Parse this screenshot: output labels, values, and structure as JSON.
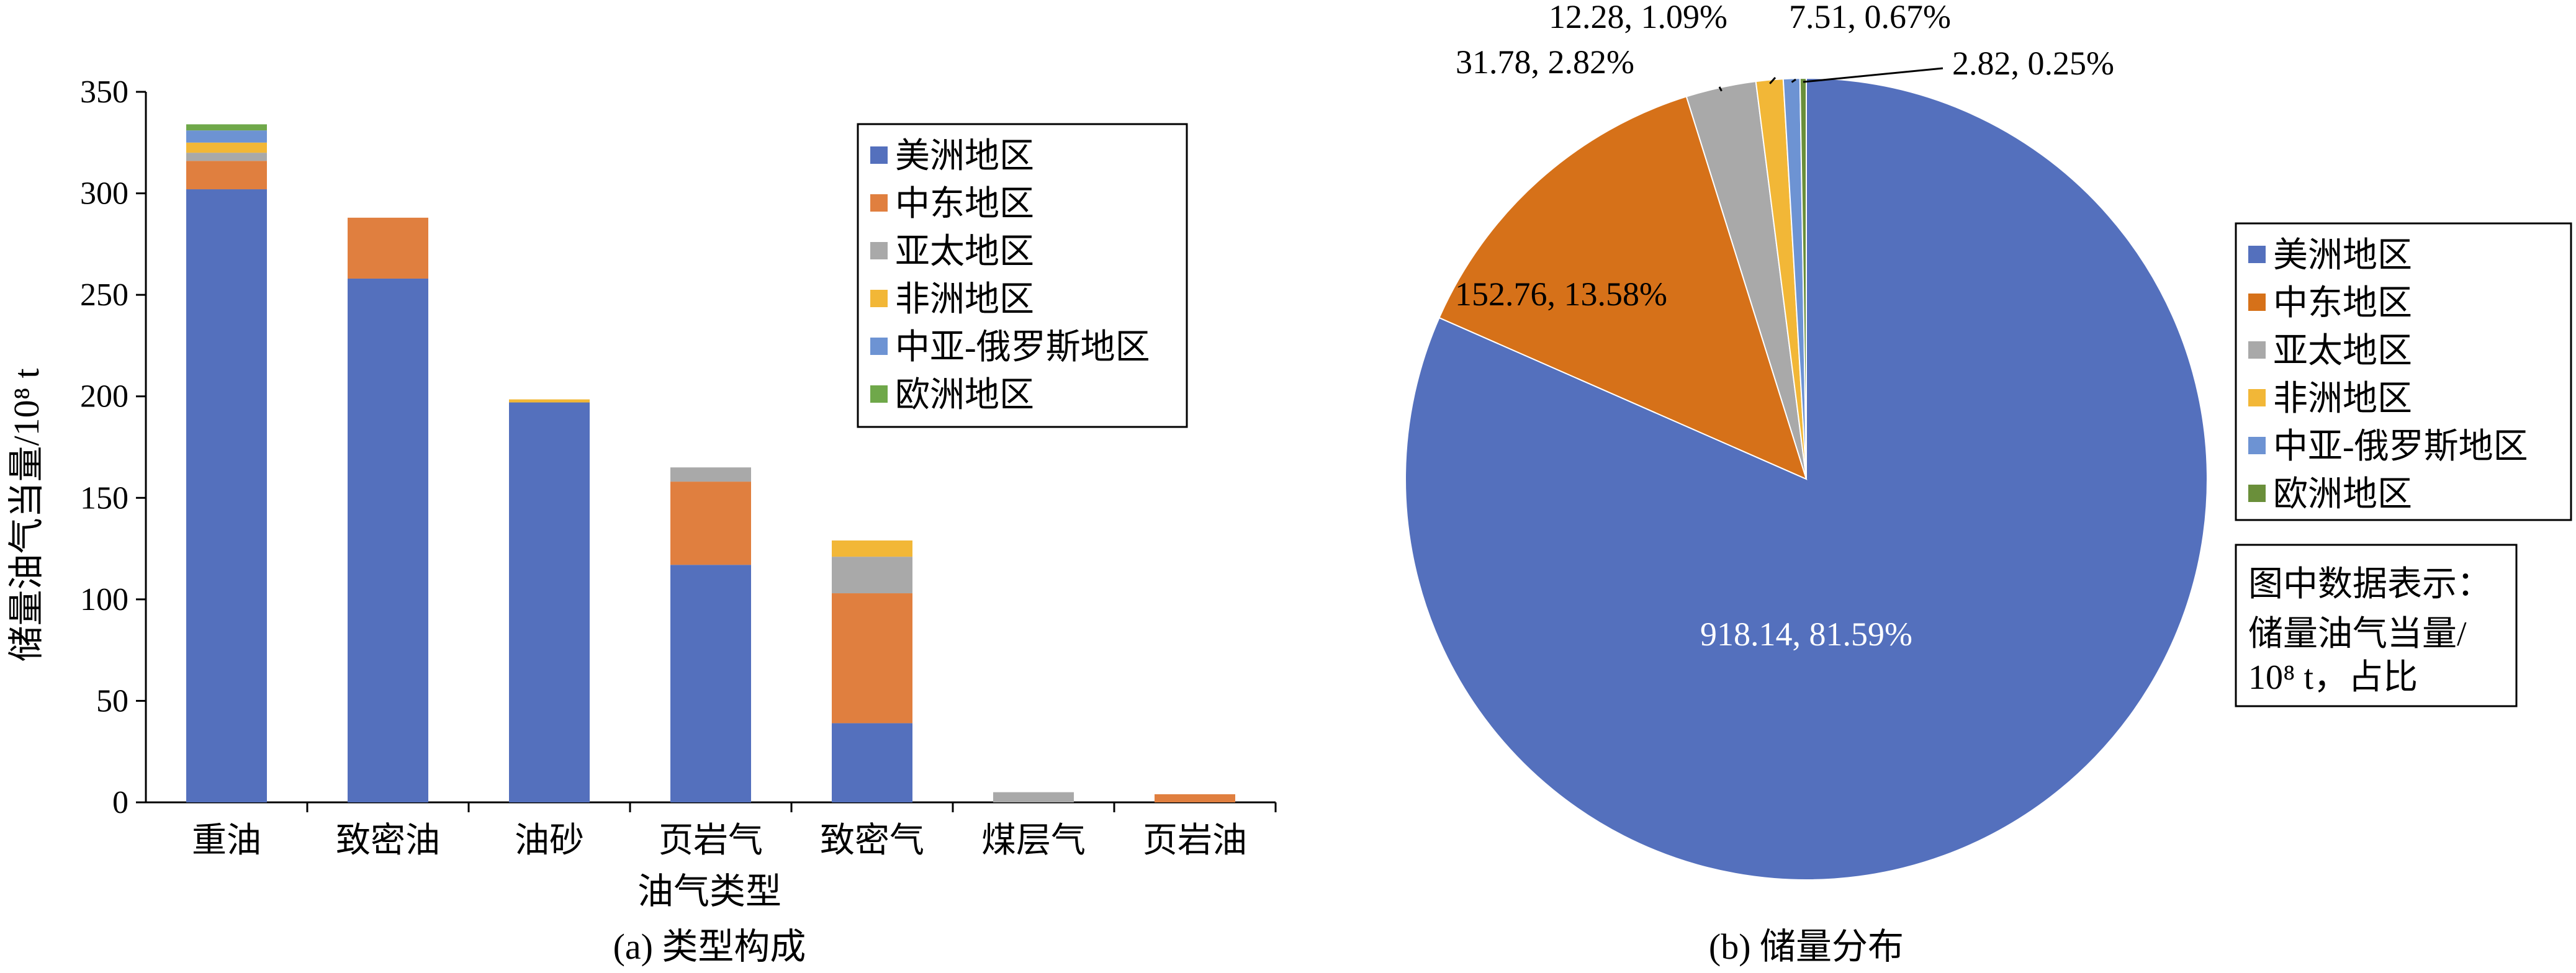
{
  "colors": {
    "美洲地区": "#5470bd",
    "中东地区": "#e07f3f",
    "亚太地区": "#a9a9a9",
    "非洲地区": "#f2b737",
    "中亚-俄罗斯地区": "#6d93d3",
    "欧洲地区": "#6fa84a",
    "pie_中东地区": "#d67119",
    "pie_欧洲地区": "#6a8f3a"
  },
  "chart_data": [
    {
      "type": "bar",
      "stacked": true,
      "caption": "(a) 类型构成",
      "xlabel": "油气类型",
      "ylabel": "储量油气当量/10⁸ t",
      "ylim": [
        0,
        350
      ],
      "yticks": [
        0,
        50,
        100,
        150,
        200,
        250,
        300,
        350
      ],
      "categories": [
        "重油",
        "致密油",
        "油砂",
        "页岩气",
        "致密气",
        "煤层气",
        "页岩油"
      ],
      "series": [
        {
          "name": "美洲地区",
          "values": [
            302,
            258,
            197,
            117,
            39,
            0,
            0
          ]
        },
        {
          "name": "中东地区",
          "values": [
            14,
            30,
            0,
            41,
            64,
            0,
            4
          ]
        },
        {
          "name": "亚太地区",
          "values": [
            4,
            0,
            0,
            7,
            18,
            5,
            0
          ]
        },
        {
          "name": "非洲地区",
          "values": [
            5,
            0,
            1.5,
            0,
            8,
            0,
            0
          ]
        },
        {
          "name": "中亚-俄罗斯地区",
          "values": [
            6,
            0,
            0,
            0,
            0,
            0,
            0
          ]
        },
        {
          "name": "欧洲地区",
          "values": [
            3,
            0,
            0,
            0,
            0,
            0,
            0
          ]
        }
      ],
      "legend": {
        "position": "top-right",
        "items": [
          "美洲地区",
          "中东地区",
          "亚太地区",
          "非洲地区",
          "中亚-俄罗斯地区",
          "欧洲地区"
        ]
      }
    },
    {
      "type": "pie",
      "caption": "(b) 储量分布",
      "slices": [
        {
          "name": "美洲地区",
          "value": 918.14,
          "percent": 81.59,
          "label": "918.14, 81.59%"
        },
        {
          "name": "中东地区",
          "value": 152.76,
          "percent": 13.58,
          "label": "152.76, 13.58%"
        },
        {
          "name": "亚太地区",
          "value": 31.78,
          "percent": 2.82,
          "label": "31.78, 2.82%"
        },
        {
          "name": "非洲地区",
          "value": 12.28,
          "percent": 1.09,
          "label": "12.28, 1.09%"
        },
        {
          "name": "中亚-俄罗斯地区",
          "value": 7.51,
          "percent": 0.67,
          "label": "7.51, 0.67%"
        },
        {
          "name": "欧洲地区",
          "value": 2.82,
          "percent": 0.25,
          "label": "2.82, 0.25%"
        }
      ],
      "legend": {
        "position": "right",
        "items": [
          "美洲地区",
          "中东地区",
          "亚太地区",
          "非洲地区",
          "中亚-俄罗斯地区",
          "欧洲地区"
        ]
      },
      "note": {
        "line1": "图中数据表示：",
        "line2": "储量油气当量/",
        "line3": "10⁸ t，占比"
      }
    }
  ]
}
